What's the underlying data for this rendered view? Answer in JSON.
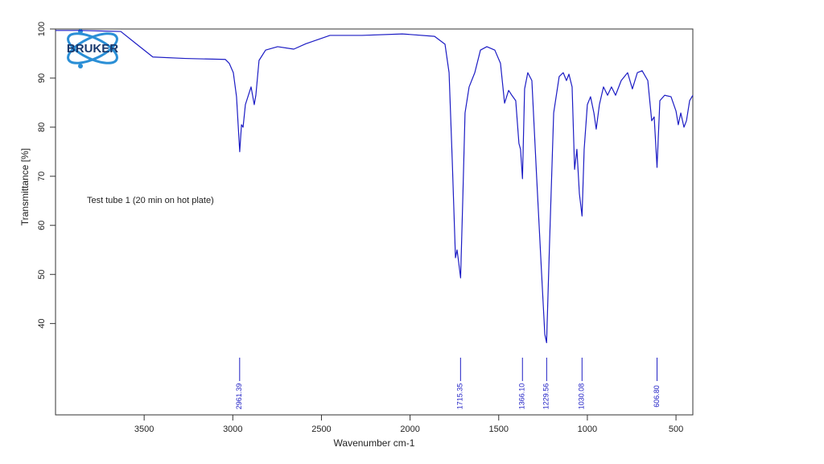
{
  "chart_data": {
    "type": "line",
    "logo": "BRUKER",
    "annotation": "Test tube 1 (20 min on hot plate)",
    "xlabel": "Wavenumber cm-1",
    "ylabel": "Transmittance [%]",
    "color": "#1c1cc4",
    "x": [
      4000,
      3859,
      3632,
      3542,
      3451,
      3269,
      3042,
      3020,
      2997,
      2979,
      2961,
      2951,
      2942,
      2929,
      2897,
      2879,
      2870,
      2852,
      2815,
      2747,
      2656,
      2588,
      2452,
      2271,
      2044,
      1862,
      1803,
      1780,
      1762,
      1744,
      1735,
      1726,
      1715,
      1703,
      1690,
      1667,
      1635,
      1603,
      1567,
      1522,
      1490,
      1467,
      1444,
      1426,
      1404,
      1386,
      1377,
      1366,
      1354,
      1336,
      1313,
      1286,
      1258,
      1240,
      1230,
      1213,
      1190,
      1159,
      1136,
      1118,
      1104,
      1086,
      1072,
      1059,
      1045,
      1030,
      1018,
      1000,
      982,
      963,
      950,
      932,
      909,
      886,
      864,
      841,
      809,
      773,
      746,
      718,
      691,
      659,
      637,
      623,
      607,
      591,
      564,
      528,
      500,
      487,
      473,
      455,
      441,
      423,
      405
    ],
    "values": [
      99.7,
      99.7,
      99.5,
      96.9,
      94.3,
      94.0,
      93.8,
      93.0,
      91.1,
      86.2,
      75.0,
      80.5,
      80.0,
      84.6,
      88.2,
      84.6,
      86.5,
      93.6,
      95.7,
      96.4,
      95.9,
      97.0,
      98.7,
      98.7,
      99.0,
      98.5,
      96.9,
      91.1,
      73.1,
      53.4,
      55.0,
      52.5,
      49.3,
      64.9,
      82.9,
      88.2,
      91.1,
      95.7,
      96.4,
      95.7,
      93.0,
      84.9,
      87.5,
      86.5,
      85.4,
      76.7,
      75.5,
      69.5,
      87.8,
      91.1,
      89.5,
      69.8,
      50.1,
      37.8,
      36.1,
      56.7,
      82.9,
      90.3,
      91.1,
      89.5,
      90.8,
      88.2,
      71.4,
      75.5,
      66.5,
      61.9,
      75.5,
      84.6,
      86.2,
      82.9,
      79.6,
      84.6,
      88.2,
      86.5,
      88.2,
      86.5,
      89.5,
      91.1,
      87.8,
      91.1,
      91.5,
      89.5,
      81.3,
      82.1,
      71.8,
      85.4,
      86.5,
      86.2,
      83.3,
      80.5,
      82.9,
      80.0,
      81.3,
      85.4,
      86.5
    ],
    "peaks": [
      2961.39,
      1715.35,
      {
        "value": 1366.1,
        "label": "1366.10"
      },
      1229.56,
      1030.08,
      {
        "value": 606.8,
        "label": "606.80"
      }
    ],
    "xlim": [
      4000,
      405
    ],
    "ylim": [
      21.4,
      100
    ],
    "xticks": [
      3500,
      3000,
      2500,
      2000,
      1500,
      1000,
      500
    ],
    "yticks": [
      40,
      50,
      60,
      70,
      80,
      90,
      100
    ]
  }
}
